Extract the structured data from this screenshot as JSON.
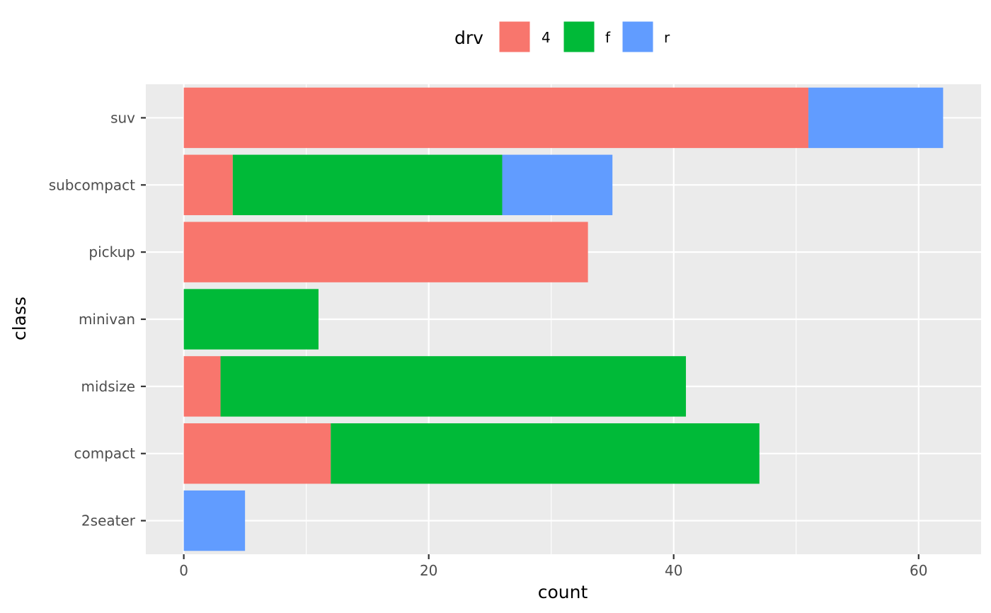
{
  "chart_data": {
    "type": "bar",
    "orientation": "horizontal",
    "stacked": true,
    "categories": [
      "2seater",
      "compact",
      "midsize",
      "minivan",
      "pickup",
      "subcompact",
      "suv"
    ],
    "series": [
      {
        "name": "4",
        "color": "#F8766D",
        "values": [
          0,
          12,
          3,
          0,
          33,
          4,
          51
        ]
      },
      {
        "name": "f",
        "color": "#00BA38",
        "values": [
          0,
          35,
          38,
          11,
          0,
          22,
          0
        ]
      },
      {
        "name": "r",
        "color": "#619CFF",
        "values": [
          5,
          0,
          0,
          0,
          0,
          9,
          11
        ]
      }
    ],
    "xlabel": "count",
    "ylabel": "class",
    "xlim": [
      -3.1,
      65.1
    ],
    "xticks": [
      0,
      20,
      40,
      60
    ],
    "legend_title": "drv",
    "legend_position": "top",
    "grid": true,
    "panel_background": "#EBEBEB"
  }
}
